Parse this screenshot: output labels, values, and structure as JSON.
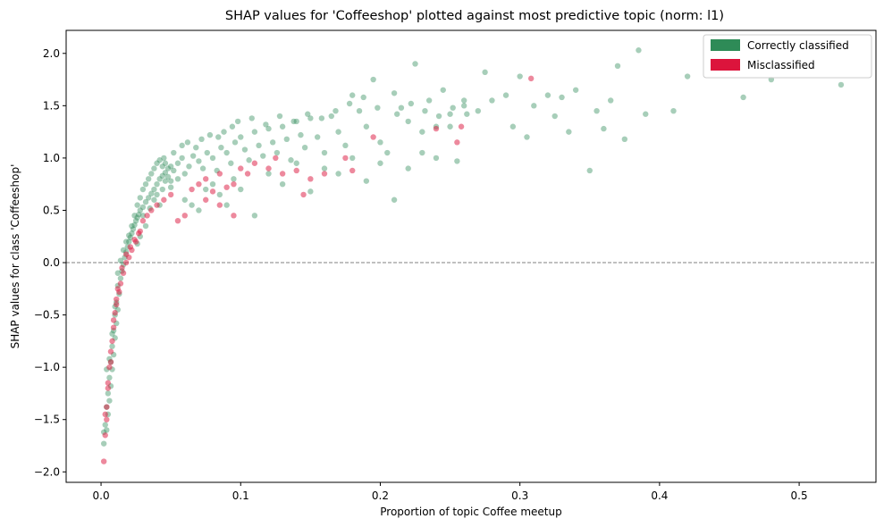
{
  "chart_data": {
    "type": "scatter",
    "title": "SHAP values for 'Coffeeshop' plotted against most predictive topic (norm: l1)",
    "xlabel": "Proportion of topic Coffee meetup",
    "ylabel": "SHAP values for class 'Coffeeshop'",
    "xlim": [
      -0.025,
      0.555
    ],
    "ylim": [
      -2.1,
      2.22
    ],
    "xticks": [
      0.0,
      0.1,
      0.2,
      0.3,
      0.4,
      0.5
    ],
    "xtick_labels": [
      "0.0",
      "0.1",
      "0.2",
      "0.3",
      "0.4",
      "0.5"
    ],
    "yticks": [
      -2.0,
      -1.5,
      -1.0,
      -0.5,
      0.0,
      0.5,
      1.0,
      1.5,
      2.0
    ],
    "ytick_labels": [
      "−2.0",
      "−1.5",
      "−1.0",
      "−0.5",
      "0.0",
      "0.5",
      "1.0",
      "1.5",
      "2.0"
    ],
    "reference_line": {
      "y": 0.0,
      "style": "dashed",
      "color": "#808080"
    },
    "grid": false,
    "legend_position": "top-right",
    "series": [
      {
        "name": "Correctly classified",
        "color": "#2e8b57",
        "points": [
          [
            0.002,
            -1.73
          ],
          [
            0.002,
            -1.62
          ],
          [
            0.003,
            -1.55
          ],
          [
            0.004,
            -1.6
          ],
          [
            0.005,
            -1.45
          ],
          [
            0.004,
            -1.38
          ],
          [
            0.006,
            -1.32
          ],
          [
            0.005,
            -1.25
          ],
          [
            0.007,
            -1.18
          ],
          [
            0.006,
            -1.1
          ],
          [
            0.008,
            -1.02
          ],
          [
            0.007,
            -0.95
          ],
          [
            0.009,
            -0.88
          ],
          [
            0.008,
            -0.8
          ],
          [
            0.01,
            -0.72
          ],
          [
            0.009,
            -0.65
          ],
          [
            0.011,
            -0.58
          ],
          [
            0.01,
            -0.5
          ],
          [
            0.012,
            -0.45
          ],
          [
            0.011,
            -0.38
          ],
          [
            0.013,
            -0.3
          ],
          [
            0.012,
            -0.22
          ],
          [
            0.014,
            -0.15
          ],
          [
            0.015,
            -0.08
          ],
          [
            0.016,
            -0.02
          ],
          [
            0.017,
            0.05
          ],
          [
            0.018,
            0.1
          ],
          [
            0.019,
            0.15
          ],
          [
            0.02,
            0.2
          ],
          [
            0.021,
            0.24
          ],
          [
            0.022,
            0.28
          ],
          [
            0.023,
            0.32
          ],
          [
            0.024,
            0.36
          ],
          [
            0.025,
            0.4
          ],
          [
            0.026,
            0.43
          ],
          [
            0.027,
            0.46
          ],
          [
            0.028,
            0.5
          ],
          [
            0.03,
            0.53
          ],
          [
            0.032,
            0.58
          ],
          [
            0.034,
            0.62
          ],
          [
            0.036,
            0.66
          ],
          [
            0.038,
            0.7
          ],
          [
            0.04,
            0.75
          ],
          [
            0.042,
            0.8
          ],
          [
            0.044,
            0.83
          ],
          [
            0.046,
            0.86
          ],
          [
            0.048,
            0.9
          ],
          [
            0.05,
            0.92
          ],
          [
            0.052,
            0.88
          ],
          [
            0.055,
            0.95
          ],
          [
            0.058,
            1.0
          ],
          [
            0.06,
            0.85
          ],
          [
            0.063,
            0.92
          ],
          [
            0.066,
            1.02
          ],
          [
            0.07,
            0.97
          ],
          [
            0.073,
            0.9
          ],
          [
            0.076,
            1.05
          ],
          [
            0.08,
            1.0
          ],
          [
            0.083,
            0.88
          ],
          [
            0.086,
            1.1
          ],
          [
            0.09,
            1.05
          ],
          [
            0.093,
            0.95
          ],
          [
            0.096,
            1.15
          ],
          [
            0.1,
            1.2
          ],
          [
            0.103,
            1.08
          ],
          [
            0.106,
            0.98
          ],
          [
            0.11,
            1.25
          ],
          [
            0.113,
            1.12
          ],
          [
            0.116,
            1.02
          ],
          [
            0.12,
            1.28
          ],
          [
            0.123,
            1.15
          ],
          [
            0.126,
            1.05
          ],
          [
            0.13,
            1.3
          ],
          [
            0.133,
            1.18
          ],
          [
            0.136,
            0.98
          ],
          [
            0.14,
            1.35
          ],
          [
            0.143,
            1.22
          ],
          [
            0.146,
            1.1
          ],
          [
            0.15,
            1.38
          ],
          [
            0.155,
            1.2
          ],
          [
            0.16,
            1.05
          ],
          [
            0.165,
            1.4
          ],
          [
            0.17,
            1.25
          ],
          [
            0.175,
            1.12
          ],
          [
            0.18,
            1.6
          ],
          [
            0.185,
            1.45
          ],
          [
            0.19,
            1.3
          ],
          [
            0.195,
            1.75
          ],
          [
            0.2,
            1.15
          ],
          [
            0.205,
            1.05
          ],
          [
            0.21,
            1.62
          ],
          [
            0.215,
            1.48
          ],
          [
            0.22,
            1.35
          ],
          [
            0.225,
            1.9
          ],
          [
            0.23,
            1.25
          ],
          [
            0.235,
            1.55
          ],
          [
            0.24,
            1.3
          ],
          [
            0.245,
            1.65
          ],
          [
            0.25,
            1.42
          ],
          [
            0.255,
            0.97
          ],
          [
            0.26,
            1.5
          ],
          [
            0.27,
            1.45
          ],
          [
            0.275,
            1.82
          ],
          [
            0.28,
            1.55
          ],
          [
            0.29,
            1.6
          ],
          [
            0.295,
            1.3
          ],
          [
            0.3,
            1.78
          ],
          [
            0.305,
            1.2
          ],
          [
            0.31,
            1.5
          ],
          [
            0.32,
            1.6
          ],
          [
            0.325,
            1.4
          ],
          [
            0.33,
            1.58
          ],
          [
            0.335,
            1.25
          ],
          [
            0.34,
            1.65
          ],
          [
            0.35,
            0.88
          ],
          [
            0.355,
            1.45
          ],
          [
            0.36,
            1.28
          ],
          [
            0.365,
            1.55
          ],
          [
            0.37,
            1.88
          ],
          [
            0.375,
            1.18
          ],
          [
            0.385,
            2.03
          ],
          [
            0.39,
            1.42
          ],
          [
            0.41,
            1.45
          ],
          [
            0.42,
            1.78
          ],
          [
            0.46,
            1.58
          ],
          [
            0.48,
            1.75
          ],
          [
            0.53,
            1.7
          ],
          [
            0.045,
            1.0
          ],
          [
            0.05,
            0.72
          ],
          [
            0.055,
            0.8
          ],
          [
            0.06,
            0.6
          ],
          [
            0.065,
            0.55
          ],
          [
            0.07,
            0.5
          ],
          [
            0.075,
            0.7
          ],
          [
            0.08,
            0.75
          ],
          [
            0.085,
            0.65
          ],
          [
            0.09,
            0.55
          ],
          [
            0.095,
            0.8
          ],
          [
            0.1,
            0.7
          ],
          [
            0.11,
            0.45
          ],
          [
            0.12,
            0.85
          ],
          [
            0.13,
            0.75
          ],
          [
            0.14,
            0.95
          ],
          [
            0.15,
            0.68
          ],
          [
            0.16,
            0.9
          ],
          [
            0.17,
            0.85
          ],
          [
            0.18,
            1.0
          ],
          [
            0.19,
            0.78
          ],
          [
            0.2,
            0.95
          ],
          [
            0.21,
            0.6
          ],
          [
            0.22,
            0.9
          ],
          [
            0.23,
            1.05
          ],
          [
            0.24,
            1.0
          ],
          [
            0.25,
            1.3
          ],
          [
            0.26,
            1.55
          ],
          [
            0.03,
            0.45
          ],
          [
            0.032,
            0.35
          ],
          [
            0.028,
            0.25
          ],
          [
            0.026,
            0.18
          ],
          [
            0.035,
            0.52
          ],
          [
            0.038,
            0.6
          ],
          [
            0.04,
            0.65
          ],
          [
            0.042,
            0.55
          ],
          [
            0.044,
            0.7
          ],
          [
            0.046,
            0.78
          ],
          [
            0.048,
            0.82
          ],
          [
            0.05,
            0.78
          ],
          [
            0.004,
            -1.02
          ],
          [
            0.006,
            -0.92
          ],
          [
            0.008,
            -0.68
          ],
          [
            0.01,
            -0.42
          ],
          [
            0.012,
            -0.1
          ],
          [
            0.014,
            0.02
          ],
          [
            0.016,
            0.12
          ],
          [
            0.018,
            0.2
          ],
          [
            0.02,
            0.26
          ],
          [
            0.022,
            0.35
          ],
          [
            0.024,
            0.45
          ],
          [
            0.026,
            0.55
          ],
          [
            0.028,
            0.62
          ],
          [
            0.03,
            0.7
          ],
          [
            0.032,
            0.75
          ],
          [
            0.034,
            0.8
          ],
          [
            0.036,
            0.85
          ],
          [
            0.038,
            0.9
          ],
          [
            0.04,
            0.95
          ],
          [
            0.042,
            0.98
          ],
          [
            0.044,
            0.92
          ],
          [
            0.046,
            0.95
          ],
          [
            0.052,
            1.05
          ],
          [
            0.058,
            1.12
          ],
          [
            0.062,
            1.15
          ],
          [
            0.068,
            1.1
          ],
          [
            0.072,
            1.18
          ],
          [
            0.078,
            1.22
          ],
          [
            0.084,
            1.2
          ],
          [
            0.088,
            1.25
          ],
          [
            0.094,
            1.3
          ],
          [
            0.098,
            1.35
          ],
          [
            0.108,
            1.38
          ],
          [
            0.118,
            1.32
          ],
          [
            0.128,
            1.4
          ],
          [
            0.138,
            1.35
          ],
          [
            0.148,
            1.42
          ],
          [
            0.158,
            1.38
          ],
          [
            0.168,
            1.45
          ],
          [
            0.178,
            1.52
          ],
          [
            0.188,
            1.58
          ],
          [
            0.198,
            1.48
          ],
          [
            0.212,
            1.42
          ],
          [
            0.222,
            1.52
          ],
          [
            0.232,
            1.45
          ],
          [
            0.242,
            1.4
          ],
          [
            0.252,
            1.48
          ],
          [
            0.262,
            1.42
          ]
        ]
      },
      {
        "name": "Misclassified",
        "color": "#dc143c",
        "points": [
          [
            0.002,
            -1.9
          ],
          [
            0.003,
            -1.45
          ],
          [
            0.004,
            -1.38
          ],
          [
            0.005,
            -1.15
          ],
          [
            0.006,
            -1.0
          ],
          [
            0.007,
            -0.85
          ],
          [
            0.008,
            -0.75
          ],
          [
            0.009,
            -0.55
          ],
          [
            0.01,
            -0.48
          ],
          [
            0.011,
            -0.35
          ],
          [
            0.012,
            -0.25
          ],
          [
            0.014,
            -0.2
          ],
          [
            0.016,
            -0.1
          ],
          [
            0.018,
            0.0
          ],
          [
            0.02,
            0.05
          ],
          [
            0.022,
            0.12
          ],
          [
            0.025,
            0.2
          ],
          [
            0.028,
            0.3
          ],
          [
            0.03,
            0.4
          ],
          [
            0.033,
            0.45
          ],
          [
            0.036,
            0.5
          ],
          [
            0.04,
            0.55
          ],
          [
            0.045,
            0.6
          ],
          [
            0.05,
            0.65
          ],
          [
            0.055,
            0.4
          ],
          [
            0.06,
            0.45
          ],
          [
            0.065,
            0.7
          ],
          [
            0.07,
            0.75
          ],
          [
            0.075,
            0.8
          ],
          [
            0.08,
            0.68
          ],
          [
            0.085,
            0.85
          ],
          [
            0.09,
            0.72
          ],
          [
            0.095,
            0.75
          ],
          [
            0.1,
            0.9
          ],
          [
            0.105,
            0.85
          ],
          [
            0.11,
            0.95
          ],
          [
            0.12,
            0.9
          ],
          [
            0.125,
            1.0
          ],
          [
            0.13,
            0.85
          ],
          [
            0.14,
            0.88
          ],
          [
            0.145,
            0.65
          ],
          [
            0.15,
            0.8
          ],
          [
            0.16,
            0.85
          ],
          [
            0.175,
            1.0
          ],
          [
            0.18,
            0.88
          ],
          [
            0.195,
            1.2
          ],
          [
            0.24,
            1.28
          ],
          [
            0.255,
            1.15
          ],
          [
            0.258,
            1.3
          ],
          [
            0.308,
            1.76
          ],
          [
            0.015,
            -0.05
          ],
          [
            0.018,
            0.08
          ],
          [
            0.021,
            0.15
          ],
          [
            0.024,
            0.22
          ],
          [
            0.027,
            0.28
          ],
          [
            0.005,
            -1.2
          ],
          [
            0.007,
            -0.95
          ],
          [
            0.009,
            -0.62
          ],
          [
            0.011,
            -0.4
          ],
          [
            0.013,
            -0.28
          ],
          [
            0.003,
            -1.65
          ],
          [
            0.004,
            -1.5
          ],
          [
            0.075,
            0.6
          ],
          [
            0.085,
            0.55
          ],
          [
            0.095,
            0.45
          ]
        ]
      }
    ]
  }
}
